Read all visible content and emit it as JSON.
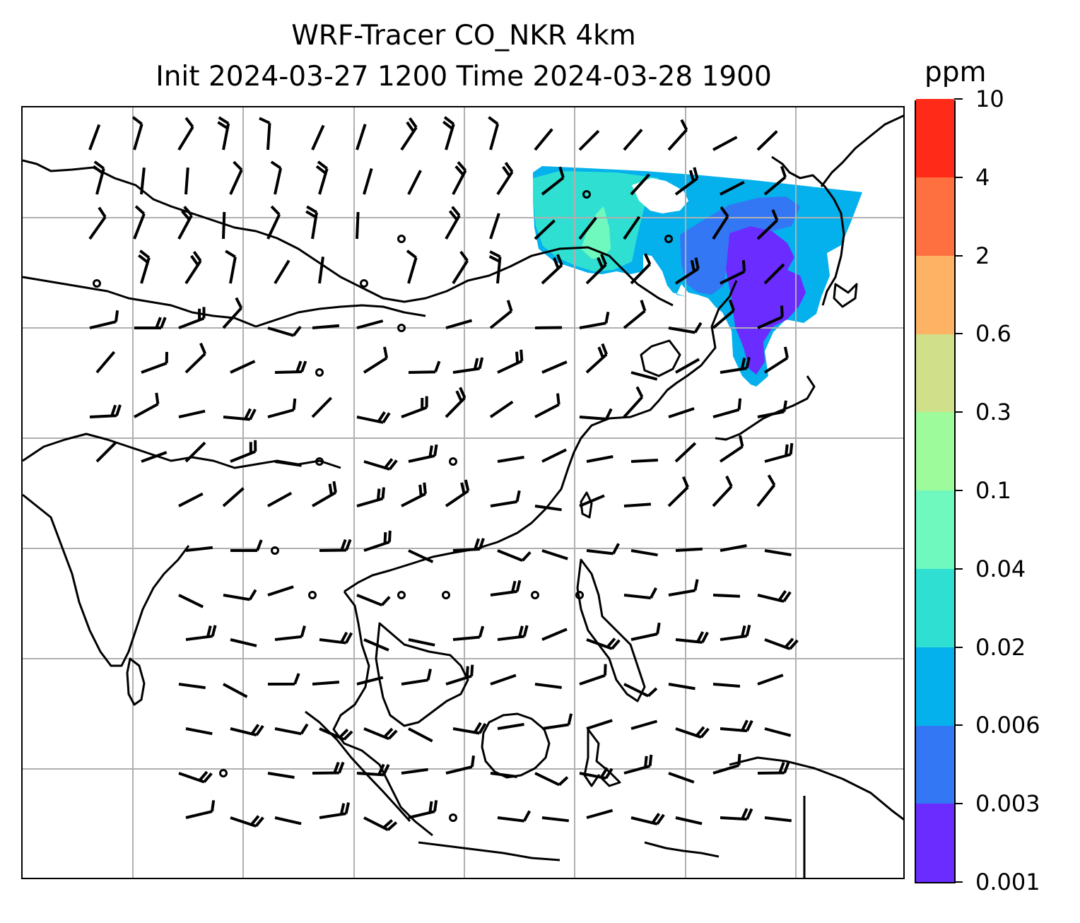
{
  "title": {
    "line1": "WRF-Tracer CO_NKR 4km",
    "line2": "Init 2024-03-27 1200 Time 2024-03-28 1900"
  },
  "colorbar": {
    "unit": "ppm",
    "ticks": [
      "0.001",
      "0.003",
      "0.006",
      "0.02",
      "0.04",
      "0.1",
      "0.3",
      "0.6",
      "2",
      "4",
      "10"
    ],
    "colors": [
      "#6a2cff",
      "#3377f5",
      "#04b1ec",
      "#2fe0d2",
      "#6ff9be",
      "#9dfb9b",
      "#d0e08a",
      "#fdb264",
      "#ff7040",
      "#ff2a18"
    ]
  },
  "map": {
    "projection": "lambert-conformal",
    "graticule": true,
    "plume_levels": [
      "0.001",
      "0.003",
      "0.006",
      "0.02",
      "0.04"
    ]
  }
}
